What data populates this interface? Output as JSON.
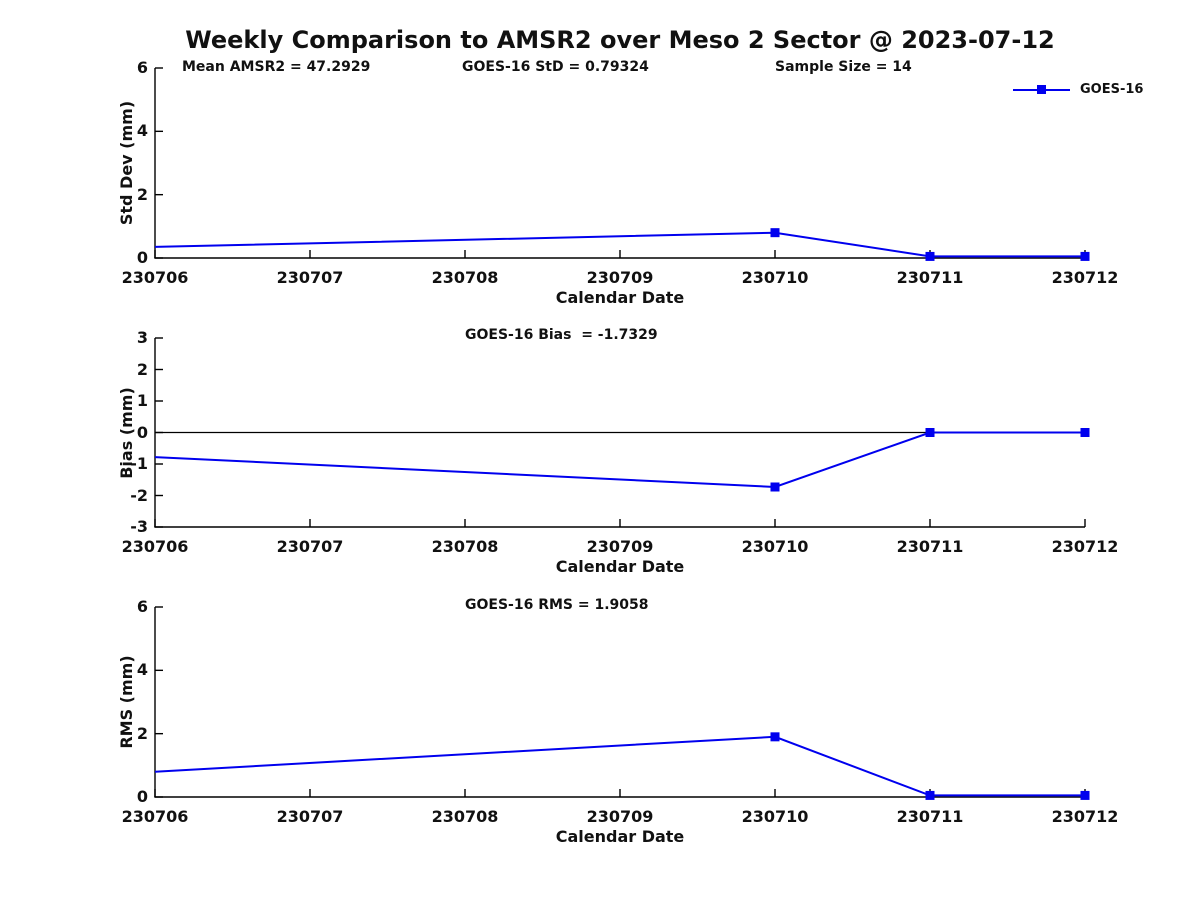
{
  "figure": {
    "title": "Weekly Comparison to AMSR2 over Meso 2 Sector @ 2023-07-12",
    "legend": {
      "label": "GOES-16",
      "line_color": "#0000EE"
    },
    "text_color": "#111111",
    "axis_color": "#000000"
  },
  "chart_data": [
    {
      "type": "line",
      "panel": "std-dev",
      "annotations": [
        "Mean AMSR2 = 47.2929",
        "GOES-16 StD = 0.79324",
        "Sample Size = 14"
      ],
      "xlabel": "Calendar Date",
      "ylabel": "Std Dev (mm)",
      "ylim": [
        0,
        6
      ],
      "yticks": [
        0,
        2,
        4,
        6
      ],
      "categories": [
        "230706",
        "230707",
        "230708",
        "230709",
        "230710",
        "230711",
        "230712"
      ],
      "grid": false,
      "zero_line": false,
      "legend_position": "upper right",
      "series": [
        {
          "name": "GOES-16",
          "color": "#0000EE",
          "points": [
            {
              "date": "230706",
              "value": 0.35,
              "marker": false
            },
            {
              "date": "230710",
              "value": 0.8,
              "marker": true
            },
            {
              "date": "230711",
              "value": 0.05,
              "marker": true
            },
            {
              "date": "230712",
              "value": 0.05,
              "marker": true
            }
          ]
        }
      ]
    },
    {
      "type": "line",
      "panel": "bias",
      "annotations": [
        "GOES-16 Bias  = -1.7329"
      ],
      "xlabel": "Calendar Date",
      "ylabel": "Bias (mm)",
      "ylim": [
        -3,
        3
      ],
      "yticks": [
        3,
        2,
        1,
        0,
        -1,
        -2,
        -3
      ],
      "categories": [
        "230706",
        "230707",
        "230708",
        "230709",
        "230710",
        "230711",
        "230712"
      ],
      "grid": false,
      "zero_line": true,
      "series": [
        {
          "name": "GOES-16",
          "color": "#0000EE",
          "points": [
            {
              "date": "230706",
              "value": -0.78,
              "marker": false
            },
            {
              "date": "230710",
              "value": -1.73,
              "marker": true
            },
            {
              "date": "230711",
              "value": 0.0,
              "marker": true
            },
            {
              "date": "230712",
              "value": 0.0,
              "marker": true
            }
          ]
        }
      ]
    },
    {
      "type": "line",
      "panel": "rms",
      "annotations": [
        "GOES-16 RMS = 1.9058"
      ],
      "xlabel": "Calendar Date",
      "ylabel": "RMS (mm)",
      "ylim": [
        0,
        6
      ],
      "yticks": [
        0,
        2,
        4,
        6
      ],
      "categories": [
        "230706",
        "230707",
        "230708",
        "230709",
        "230710",
        "230711",
        "230712"
      ],
      "grid": false,
      "zero_line": false,
      "series": [
        {
          "name": "GOES-16",
          "color": "#0000EE",
          "points": [
            {
              "date": "230706",
              "value": 0.8,
              "marker": false
            },
            {
              "date": "230710",
              "value": 1.9,
              "marker": true
            },
            {
              "date": "230711",
              "value": 0.05,
              "marker": true
            },
            {
              "date": "230712",
              "value": 0.05,
              "marker": true
            }
          ]
        }
      ]
    }
  ]
}
